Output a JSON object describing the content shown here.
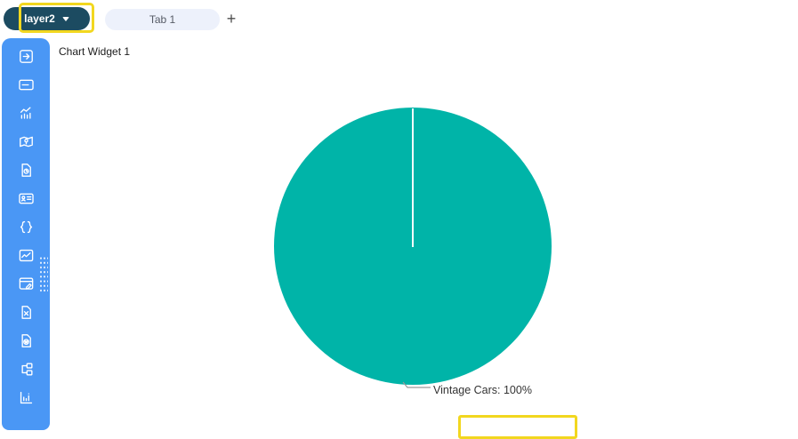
{
  "topbar": {
    "layer_selector": {
      "label": "layer2",
      "icon": "chevron-down"
    },
    "tab": {
      "label": "Tab 1"
    },
    "add_tab_label": "+"
  },
  "sidebar": {
    "items": [
      {
        "id": "open-arrow",
        "icon": "arrow-right-square"
      },
      {
        "id": "input-field",
        "icon": "input-field"
      },
      {
        "id": "combo-chart",
        "icon": "combo-chart"
      },
      {
        "id": "map",
        "icon": "map-pin"
      },
      {
        "id": "report-file",
        "icon": "file-report"
      },
      {
        "id": "id-card",
        "icon": "id-card"
      },
      {
        "id": "code",
        "icon": "curly-braces"
      },
      {
        "id": "image-chart",
        "icon": "image-chart"
      },
      {
        "id": "page-edit",
        "icon": "window-edit"
      },
      {
        "id": "excel-file",
        "icon": "file-x"
      },
      {
        "id": "word-file",
        "icon": "file-w"
      },
      {
        "id": "tree",
        "icon": "tree-structure"
      },
      {
        "id": "axis-chart",
        "icon": "axis-chart"
      }
    ]
  },
  "canvas": {
    "widget_title": "Chart Widget 1"
  },
  "chart_data": {
    "type": "pie",
    "title": "",
    "categories": [
      "Vintage Cars"
    ],
    "values": [
      100
    ],
    "unit": "%",
    "data_label": "Vintage Cars: 100%",
    "slice_colors": [
      "#00b4a8"
    ],
    "legend_position": "none"
  },
  "annotations": {
    "highlight_color": "#f2d71f",
    "highlighted_elements": [
      "layer-selector-button",
      "pie-data-label"
    ]
  },
  "colors": {
    "sidebar": "#4a97f5",
    "layer_button": "#1c4b61",
    "tab_pill": "#edf1fb",
    "pie": "#00b4a8"
  }
}
